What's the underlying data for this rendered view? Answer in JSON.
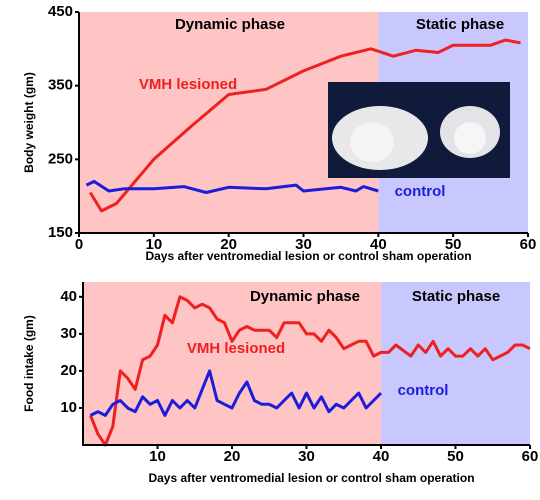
{
  "chart_data": [
    {
      "type": "line",
      "ylabel": "Body weight (gm)",
      "xlabel": "Days after ventromedial lesion or control sham operation",
      "xlim": [
        0,
        60
      ],
      "xticks": [
        0,
        10,
        20,
        30,
        40,
        50,
        60
      ],
      "ylim": [
        150,
        450
      ],
      "yticks": [
        150,
        250,
        350,
        450
      ],
      "grid": false,
      "phases": [
        {
          "label": "Dynamic phase",
          "start": 0,
          "end": 40,
          "color": "#ffc4c4"
        },
        {
          "label": "Static phase",
          "start": 40,
          "end": 60,
          "color": "#c8c8ff"
        }
      ],
      "series": [
        {
          "name": "VMH lesioned",
          "color": "#ee2020",
          "x": [
            1.5,
            3,
            5,
            10,
            15,
            20,
            25,
            30,
            35,
            39,
            42,
            45,
            48,
            50,
            55,
            57,
            59
          ],
          "y": [
            205,
            180,
            190,
            250,
            295,
            338,
            345,
            370,
            390,
            400,
            390,
            398,
            395,
            405,
            405,
            412,
            408
          ]
        },
        {
          "name": "control",
          "color": "#1c1cdc",
          "x": [
            1,
            2,
            4,
            6,
            10,
            14,
            17,
            20,
            25,
            29,
            30,
            35,
            37,
            38,
            40
          ],
          "y": [
            215,
            220,
            207,
            210,
            210,
            213,
            205,
            212,
            210,
            215,
            207,
            212,
            207,
            213,
            207
          ]
        }
      ]
    },
    {
      "type": "line",
      "ylabel": "Food intake (gm)",
      "xlabel": "Days after ventromedial lesion or control sham operation",
      "xlim": [
        0,
        60
      ],
      "xticks": [
        10,
        20,
        30,
        40,
        50,
        60
      ],
      "ylim": [
        0,
        44
      ],
      "yticks": [
        10,
        20,
        30,
        40
      ],
      "grid": false,
      "phases": [
        {
          "label": "Dynamic phase",
          "start": 0,
          "end": 40,
          "color": "#ffc4c4"
        },
        {
          "label": "Static phase",
          "start": 40,
          "end": 60,
          "color": "#c8c8ff"
        }
      ],
      "series": [
        {
          "name": "VMH lesioned",
          "color": "#ee2020",
          "x": [
            1,
            2,
            3,
            4,
            5,
            6,
            7,
            8,
            9,
            10,
            11,
            12,
            13,
            14,
            15,
            16,
            17,
            18,
            19,
            20,
            21,
            22,
            23,
            25,
            26,
            27,
            28,
            29,
            30,
            31,
            32,
            33,
            34,
            35,
            36,
            37,
            38,
            39,
            40,
            41,
            42,
            44,
            45,
            46,
            47,
            48,
            49,
            50,
            51,
            52,
            53,
            54,
            55,
            56,
            57,
            58,
            59,
            60
          ],
          "y": [
            8,
            3,
            0,
            5,
            20,
            18,
            15,
            23,
            24,
            27,
            35,
            33,
            40,
            39,
            37,
            38,
            37,
            34,
            33,
            28,
            31,
            32,
            31,
            31,
            29,
            33,
            33,
            33,
            30,
            30,
            28,
            31,
            29,
            26,
            27,
            28,
            28,
            24,
            25,
            25,
            27,
            24,
            27,
            25,
            28,
            24,
            26,
            24,
            24,
            26,
            24,
            26,
            23,
            24,
            25,
            27,
            27,
            26
          ]
        },
        {
          "name": "control",
          "color": "#1c1cdc",
          "x": [
            1,
            2,
            3,
            4,
            5,
            6,
            7,
            8,
            9,
            10,
            11,
            12,
            13,
            14,
            15,
            16,
            17,
            18,
            19,
            20,
            21,
            22,
            23,
            24,
            25,
            26,
            27,
            28,
            29,
            30,
            31,
            32,
            33,
            34,
            35,
            36,
            37,
            38,
            39,
            40
          ],
          "y": [
            8,
            9,
            8,
            11,
            12,
            10,
            9,
            13,
            11,
            12,
            8,
            12,
            10,
            12,
            10,
            15,
            20,
            12,
            11,
            10,
            14,
            17,
            12,
            11,
            11,
            10,
            12,
            14,
            10,
            14,
            10,
            13,
            9,
            11,
            10,
            12,
            14,
            10,
            12,
            14
          ]
        }
      ]
    }
  ]
}
